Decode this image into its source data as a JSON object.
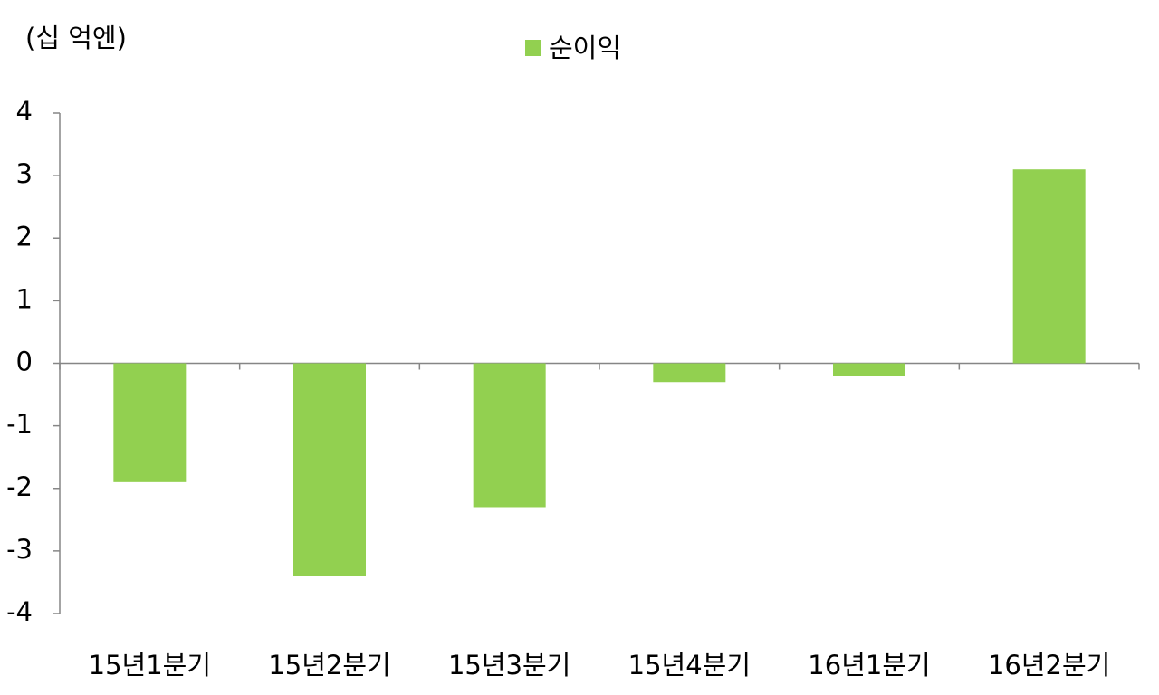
{
  "chart_data": {
    "type": "bar",
    "y_axis_label": "(십 억엔)",
    "categories": [
      "15년1분기",
      "15년2분기",
      "15년3분기",
      "15년4분기",
      "16년1분기",
      "16년2분기"
    ],
    "series": [
      {
        "name": "순이익",
        "color": "#92d050",
        "values": [
          -1.9,
          -3.4,
          -2.3,
          -0.3,
          -0.2,
          3.1
        ]
      }
    ],
    "ylim": [
      -4,
      4
    ],
    "yticks": [
      -4,
      -3,
      -2,
      -1,
      0,
      1,
      2,
      3,
      4
    ],
    "grid": false,
    "legend": "top"
  }
}
